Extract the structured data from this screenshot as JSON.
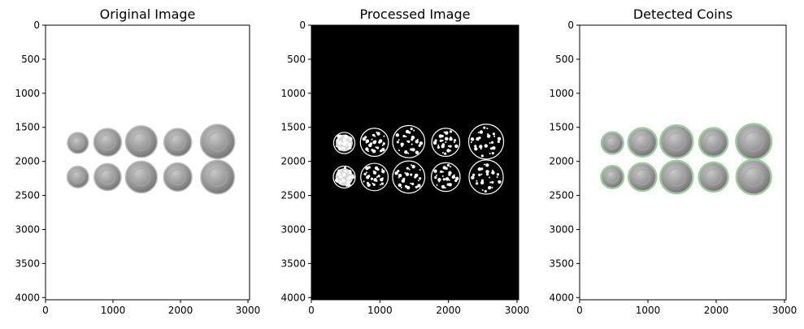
{
  "chart_data": [
    {
      "type": "image",
      "title": "Original Image",
      "style": "original",
      "xlim": [
        0,
        3024
      ],
      "ylim": [
        4032,
        0
      ],
      "xticks": [
        0,
        1000,
        2000,
        3000
      ],
      "yticks": [
        0,
        500,
        1000,
        1500,
        2000,
        2500,
        3000,
        3500,
        4000
      ],
      "grid": false
    },
    {
      "type": "image",
      "title": "Processed Image",
      "style": "processed",
      "xlim": [
        0,
        3024
      ],
      "ylim": [
        4032,
        0
      ],
      "xticks": [
        0,
        1000,
        2000,
        3000
      ],
      "yticks": [
        0,
        500,
        1000,
        1500,
        2000,
        2500,
        3000,
        3500,
        4000
      ],
      "grid": false
    },
    {
      "type": "image",
      "title": "Detected Coins",
      "style": "detected",
      "xlim": [
        0,
        3024
      ],
      "ylim": [
        4032,
        0
      ],
      "xticks": [
        0,
        1000,
        2000,
        3000
      ],
      "yticks": [
        0,
        500,
        1000,
        1500,
        2000,
        2500,
        3000,
        3500,
        4000
      ],
      "grid": false
    }
  ],
  "coins": [
    {
      "x": 480,
      "y": 1730,
      "r": 155
    },
    {
      "x": 920,
      "y": 1720,
      "r": 205
    },
    {
      "x": 1420,
      "y": 1710,
      "r": 235
    },
    {
      "x": 1960,
      "y": 1720,
      "r": 205
    },
    {
      "x": 2550,
      "y": 1710,
      "r": 255
    },
    {
      "x": 480,
      "y": 2230,
      "r": 160
    },
    {
      "x": 920,
      "y": 2230,
      "r": 200
    },
    {
      "x": 1420,
      "y": 2230,
      "r": 235
    },
    {
      "x": 1960,
      "y": 2230,
      "r": 210
    },
    {
      "x": 2550,
      "y": 2230,
      "r": 250
    }
  ],
  "colors": {
    "coin_fill": "#8e8e8e",
    "coin_edge": "#bdbdbd",
    "processed_bg": "#000000",
    "processed_mark": "#ffffff",
    "detected_ring": "#8fd28f"
  }
}
